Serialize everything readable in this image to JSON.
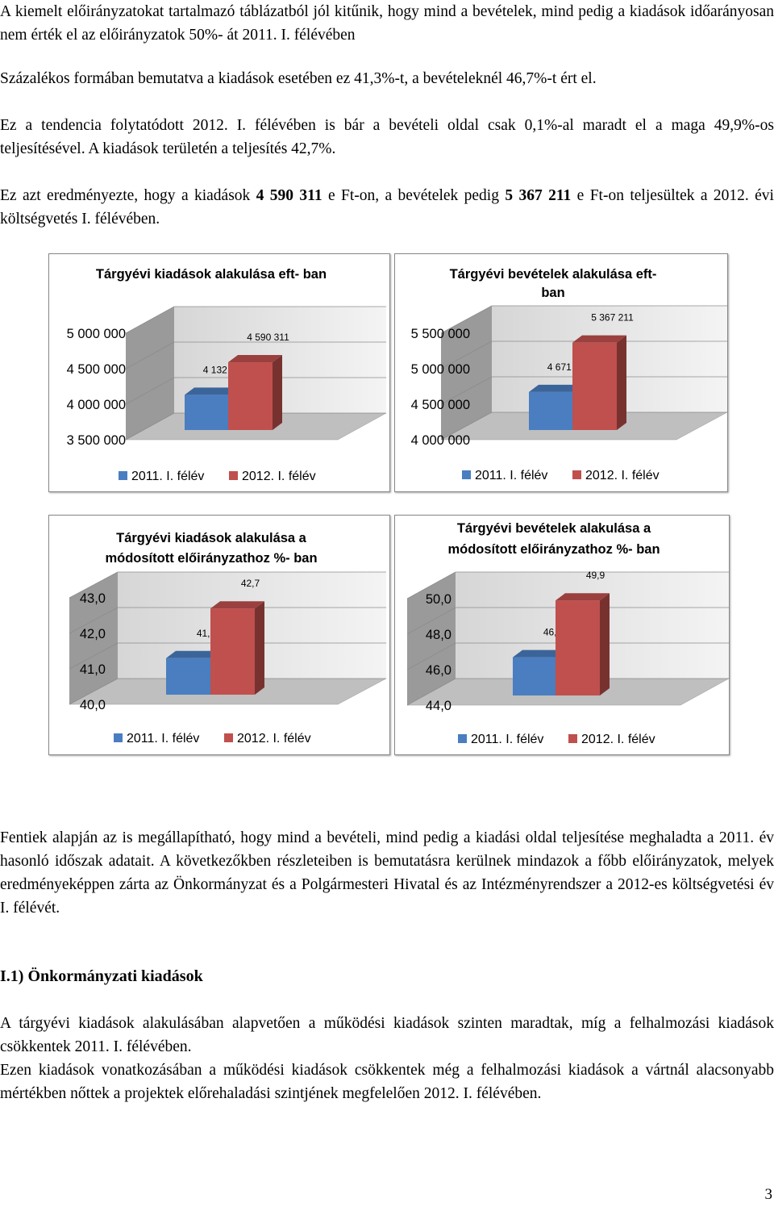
{
  "paragraphs": {
    "p1": "A kiemelt előirányzatokat tartalmazó táblázatból jól kitűnik, hogy mind a bevételek, mind pedig a kiadások időarányosan nem érték el az előirányzatok 50%- át 2011. I. félévében",
    "p2": "Százalékos formában bemutatva a kiadások esetében ez 41,3%-t, a bevételeknél 46,7%-t ért el.",
    "p3": "Ez a tendencia folytatódott 2012. I. félévében is bár a bevételi oldal csak 0,1%-al maradt el a maga 49,9%-os teljesítésével. A kiadások területén a teljesítés 42,7%.",
    "p4_a": "Ez azt eredményezte, hogy a kiadások ",
    "p4_b": "4 590 311",
    "p4_c": " e Ft-on, a bevételek pedig ",
    "p4_d": "5 367 211",
    "p4_e": " e Ft-on teljesültek a 2012. évi költségvetés I. félévében.",
    "p5": "Fentiek alapján az is megállapítható, hogy mind a bevételi, mind pedig a kiadási oldal teljesítése meghaladta a 2011. év hasonló időszak adatait. A következőkben részleteiben is bemutatásra kerülnek mindazok a főbb előirányzatok, melyek eredményeképpen zárta az Önkormányzat és a Polgármesteri Hivatal és az Intézményrendszer  a 2012-es költségvetési év I. félévét.",
    "heading": "I.1) Önkormányzati kiadások",
    "p6": "A tárgyévi kiadások alakulásában alapvetően a működési kiadások szinten maradtak, míg a felhalmozási kiadások csökkentek 2011. I. félévében.",
    "p7": "Ezen kiadások vonatkozásában a működési kiadások csökkentek még a felhalmozási kiadások a vártnál alacsonyabb mértékben nőttek a projektek előrehaladási szintjének megfelelően 2012. I. félévében."
  },
  "page_number": "3",
  "colors": {
    "series1": "#4a7ec0",
    "series2": "#c0504d"
  },
  "chart_data": [
    {
      "id": "chart1",
      "type": "bar",
      "title": [
        "Tárgyévi kiadások alakulása eft- ban"
      ],
      "categories": [
        "2011. I. félév",
        "2012. I. félév"
      ],
      "values": [
        4132243,
        4590311
      ],
      "labels": [
        "4 132 243",
        "4 590 311"
      ],
      "ylim": [
        3500000,
        5000000
      ],
      "yticks": [
        "3 500 000",
        "4 000 000",
        "4 500 000",
        "5 000 000"
      ],
      "legend": "bottom"
    },
    {
      "id": "chart2",
      "type": "bar",
      "title": [
        "Tárgyévi bevételek alakulása eft-",
        "ban"
      ],
      "categories": [
        "2011. I. félév",
        "2012. I. félév"
      ],
      "values": [
        4671566,
        5367211
      ],
      "labels": [
        "4 671 566",
        "5 367 211"
      ],
      "ylim": [
        4000000,
        5500000
      ],
      "yticks": [
        "4 000 000",
        "4 500 000",
        "5 000 000",
        "5 500 000"
      ],
      "legend": "bottom"
    },
    {
      "id": "chart3",
      "type": "bar",
      "title": [
        "Tárgyévi kiadások alakulása a",
        "módosított előirányzathoz %- ban"
      ],
      "categories": [
        "2011. I. félév",
        "2012. I. félév"
      ],
      "values": [
        41.3,
        42.7
      ],
      "labels": [
        "41,3",
        "42,7"
      ],
      "ylim": [
        40,
        43
      ],
      "yticks": [
        "40,0",
        "41,0",
        "42,0",
        "43,0"
      ],
      "legend": "bottom"
    },
    {
      "id": "chart4",
      "type": "bar",
      "title": [
        "Tárgyévi bevételek alakulása a",
        "módosított előirányzathoz %- ban"
      ],
      "categories": [
        "2011. I. félév",
        "2012. I. félév"
      ],
      "values": [
        46.7,
        49.9
      ],
      "labels": [
        "46,7",
        "49,9"
      ],
      "ylim": [
        44,
        50
      ],
      "yticks": [
        "44,0",
        "46,0",
        "48,0",
        "50,0"
      ],
      "legend": "bottom"
    }
  ]
}
